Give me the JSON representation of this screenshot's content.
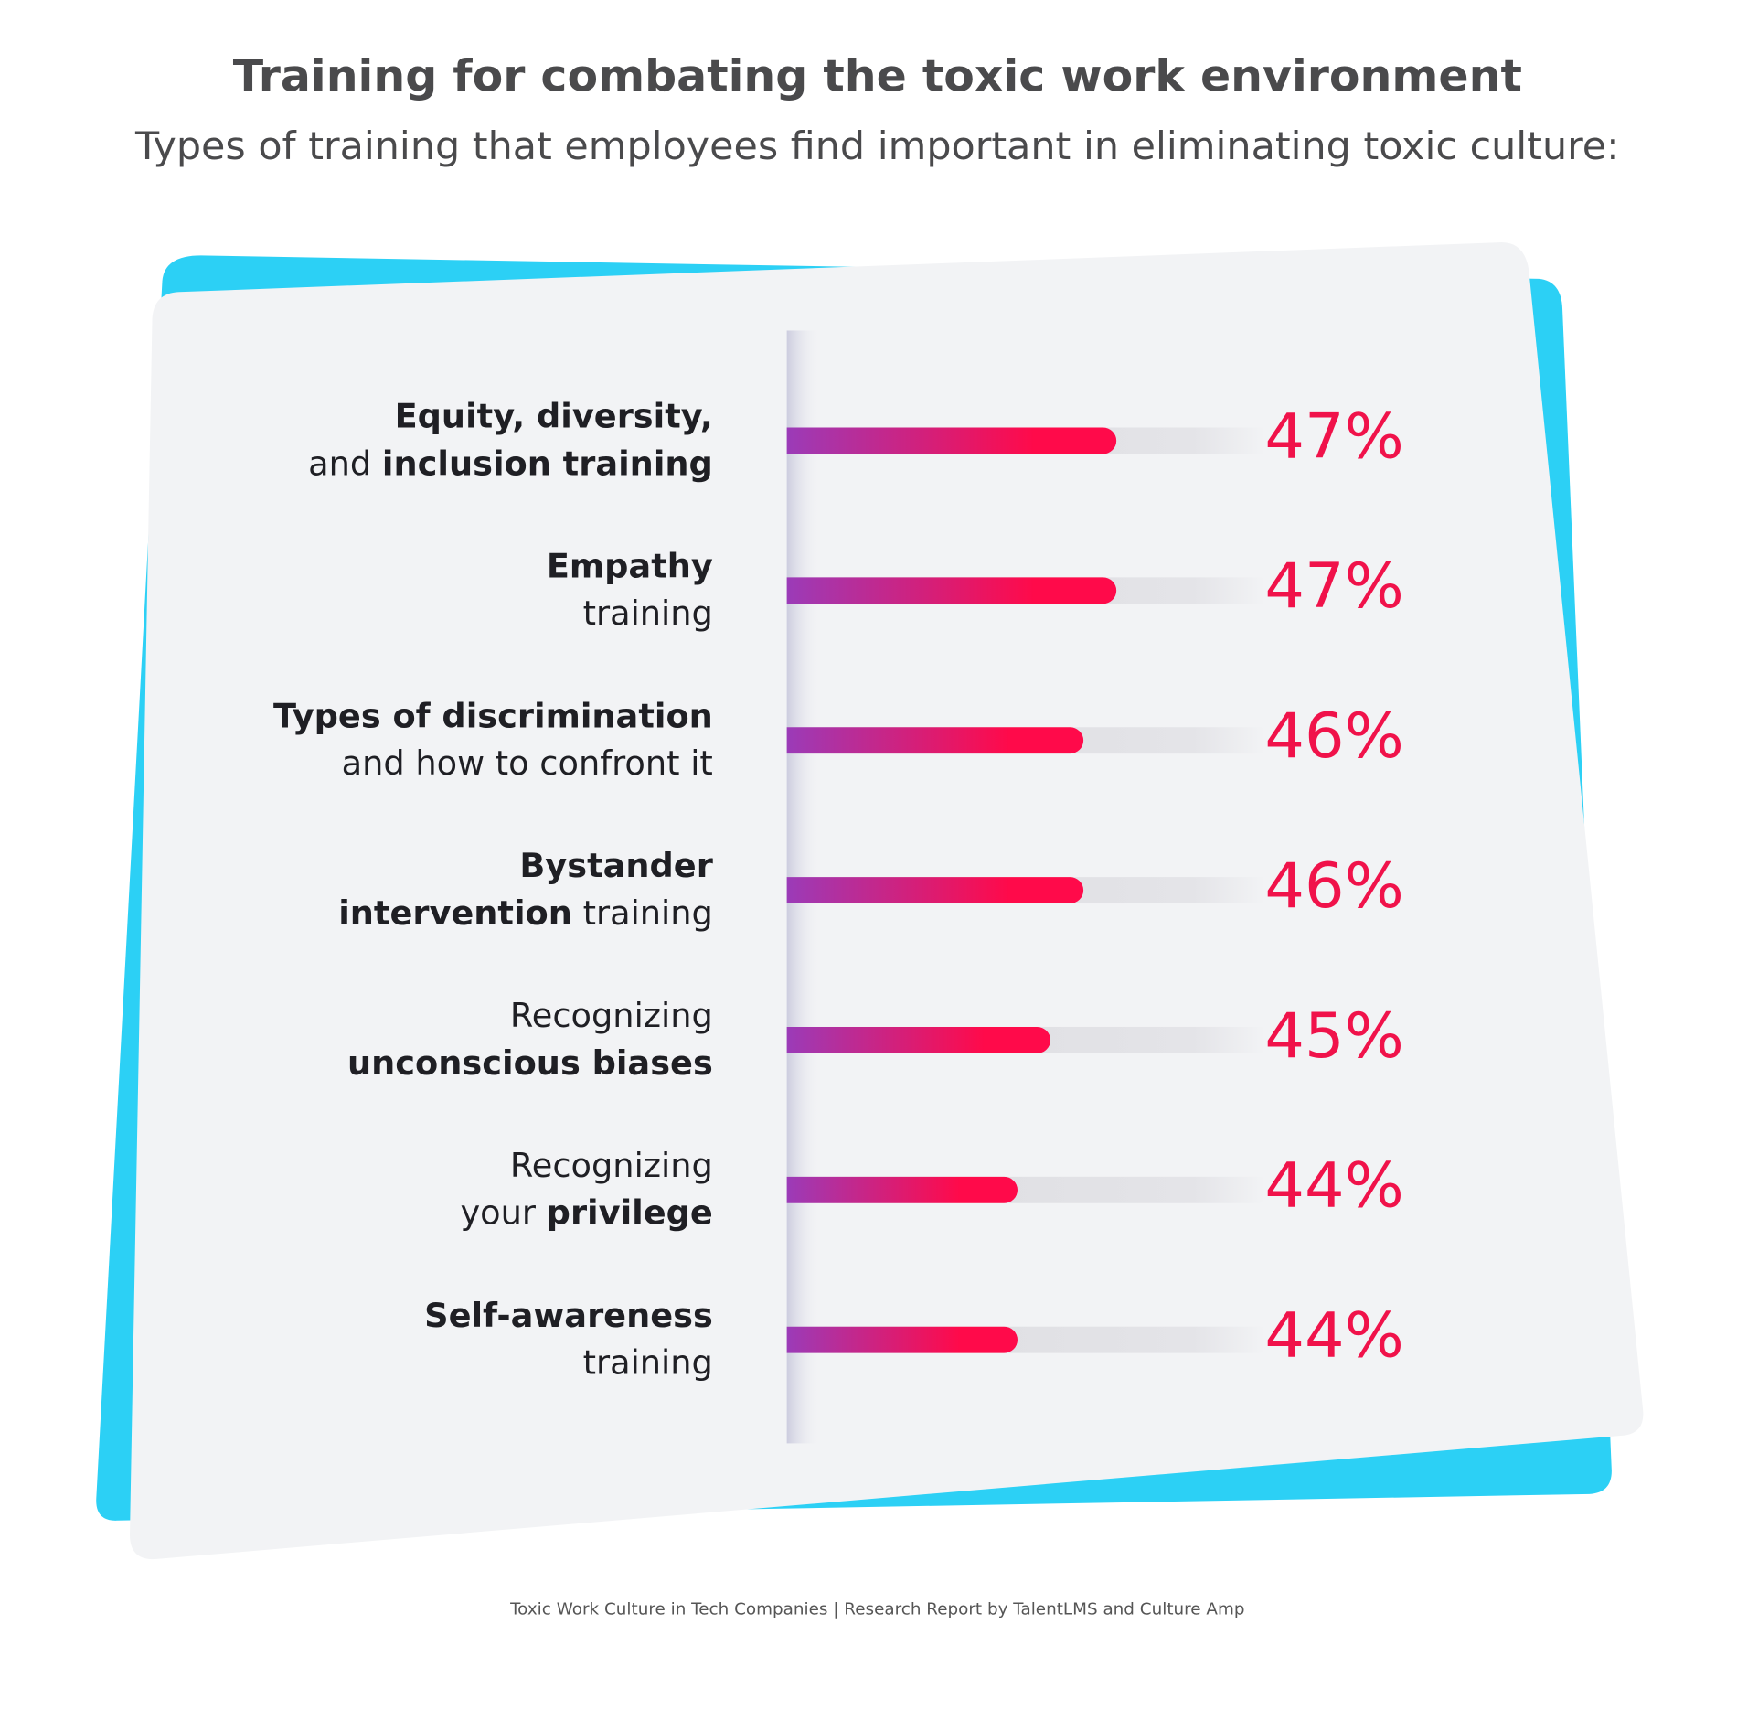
{
  "chart_data": {
    "type": "bar",
    "title": "Training for combating the toxic work environment",
    "subtitle": "Types of training that employees find important in eliminating toxic culture:",
    "categories": [
      [
        [
          {
            "text": "Equity, diversity,",
            "bold": true
          }
        ],
        [
          {
            "text": "and ",
            "bold": false
          },
          {
            "text": "inclusion training",
            "bold": true
          }
        ]
      ],
      [
        [
          {
            "text": "Empathy",
            "bold": true
          }
        ],
        [
          {
            "text": "training",
            "bold": false
          }
        ]
      ],
      [
        [
          {
            "text": "Types of discrimination",
            "bold": true
          }
        ],
        [
          {
            "text": "and how to confront it",
            "bold": false
          }
        ]
      ],
      [
        [
          {
            "text": "Bystander",
            "bold": true
          }
        ],
        [
          {
            "text": "intervention",
            "bold": true
          },
          {
            "text": " training",
            "bold": false
          }
        ]
      ],
      [
        [
          {
            "text": "Recognizing",
            "bold": false
          }
        ],
        [
          {
            "text": "unconscious biases",
            "bold": true
          }
        ]
      ],
      [
        [
          {
            "text": "Recognizing",
            "bold": false
          }
        ],
        [
          {
            "text": "your ",
            "bold": false
          },
          {
            "text": "privilege",
            "bold": true
          }
        ]
      ],
      [
        [
          {
            "text": "Self-awareness",
            "bold": true
          }
        ],
        [
          {
            "text": "training",
            "bold": false
          }
        ]
      ]
    ],
    "values": [
      47,
      47,
      46,
      46,
      45,
      44,
      44
    ],
    "value_labels": [
      "47%",
      "47%",
      "46%",
      "46%",
      "45%",
      "44%",
      "44%"
    ],
    "xlim": [
      37,
      51.5
    ],
    "color_start": "#9b3bb8",
    "color_end": "#ff0a4a",
    "source": "Toxic Work Culture in Tech Companies | Research Report by TalentLMS and Culture Amp"
  }
}
